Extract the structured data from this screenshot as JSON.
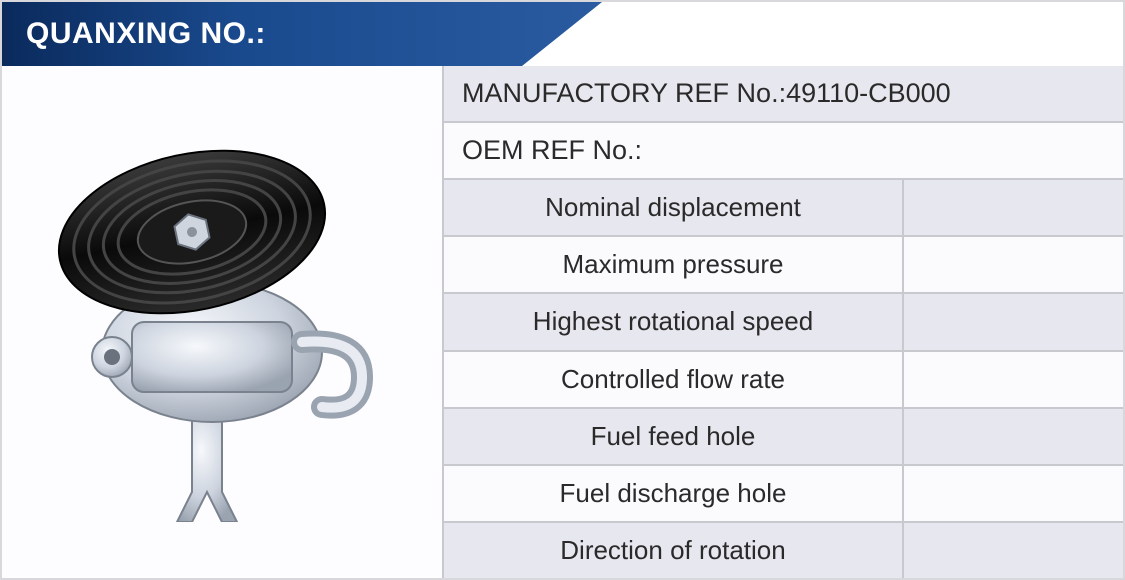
{
  "header": {
    "title": "QUANXING NO.:"
  },
  "spec": {
    "rows": [
      {
        "label": "MANUFACTORY REF No.:49110-CB000",
        "value": "",
        "full": true,
        "bg": "alt"
      },
      {
        "label": "OEM REF No.:",
        "value": "",
        "full": true,
        "bg": "reg"
      },
      {
        "label": "Nominal displacement",
        "value": "",
        "full": false,
        "bg": "alt"
      },
      {
        "label": "Maximum pressure",
        "value": "",
        "full": false,
        "bg": "reg"
      },
      {
        "label": "Highest rotational speed",
        "value": "",
        "full": false,
        "bg": "alt"
      },
      {
        "label": "Controlled flow rate",
        "value": "",
        "full": false,
        "bg": "reg"
      },
      {
        "label": "Fuel feed hole",
        "value": "",
        "full": false,
        "bg": "alt"
      },
      {
        "label": "Fuel discharge hole",
        "value": "",
        "full": false,
        "bg": "reg"
      },
      {
        "label": "Direction of rotation",
        "value": "",
        "full": false,
        "bg": "alt"
      }
    ]
  },
  "styling": {
    "header_gradient_start": "#0a2a5c",
    "header_gradient_end": "#2a5aa0",
    "header_text_color": "#ffffff",
    "header_fontsize": 30,
    "cell_fontsize": 26,
    "text_color": "#2a2a2a",
    "border_color": "#c8c8cf",
    "alt_row_bg": "#e7e7ef",
    "reg_row_bg": "#fbfbfe",
    "container_border": "#d8d8dc",
    "image_cell_width": 440,
    "label_cell_width": 460,
    "total_width": 1125,
    "total_height": 580
  },
  "image": {
    "name": "power-steering-pump",
    "pulley_color": "#1a1a1a",
    "body_color": "#d8dde6",
    "body_highlight": "#f2f4f8",
    "nut_color": "#b8bec8"
  }
}
